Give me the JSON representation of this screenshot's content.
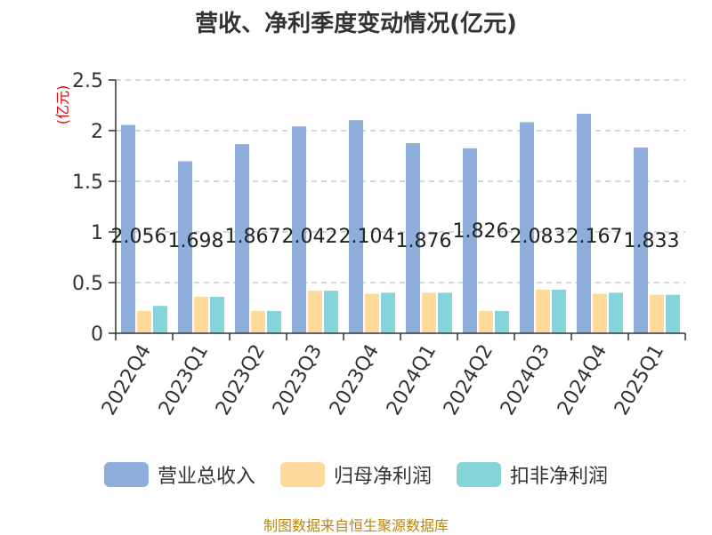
{
  "chart_data": {
    "type": "bar",
    "title": "营收、净利季度变动情况(亿元)",
    "ylabel": "(亿元)",
    "ylim": [
      0,
      2.5
    ],
    "yticks": [
      "0",
      "0.5",
      "1",
      "1.5",
      "2",
      "2.5"
    ],
    "grid": true,
    "legend_position": "bottom",
    "categories": [
      "2022Q4",
      "2023Q1",
      "2023Q2",
      "2023Q3",
      "2023Q4",
      "2024Q1",
      "2024Q2",
      "2024Q3",
      "2024Q4",
      "2025Q1"
    ],
    "series": [
      {
        "name": "营业总收入",
        "color": "#8eaedc",
        "values": [
          2.056,
          1.698,
          1.867,
          2.042,
          2.104,
          1.876,
          1.826,
          2.083,
          2.167,
          1.833
        ],
        "labels": [
          "2.056",
          "1.698",
          "1.867",
          "2.042",
          "2.104",
          "1.876",
          "1.826",
          "2.083",
          "2.167",
          "1.833"
        ]
      },
      {
        "name": "归母净利润",
        "color": "#fdd99c",
        "values": [
          0.22,
          0.36,
          0.22,
          0.42,
          0.39,
          0.4,
          0.22,
          0.43,
          0.39,
          0.38
        ]
      },
      {
        "name": "扣非净利润",
        "color": "#86d4d8",
        "values": [
          0.27,
          0.36,
          0.22,
          0.42,
          0.4,
          0.4,
          0.22,
          0.43,
          0.4,
          0.38
        ]
      }
    ]
  },
  "source": "制图数据来自恒生聚源数据库"
}
